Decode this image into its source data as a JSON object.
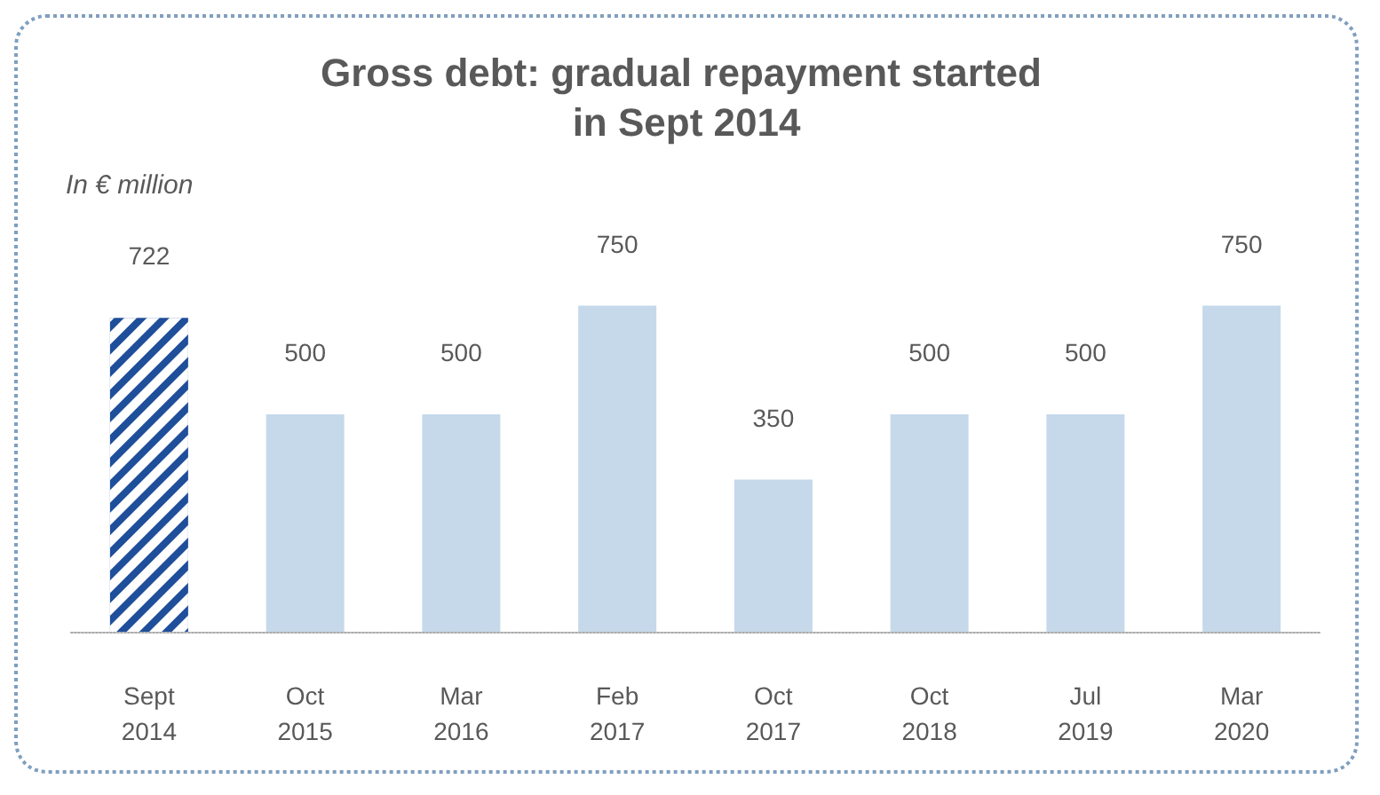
{
  "chart_data": {
    "type": "bar",
    "title": "Gross debt: gradual repayment started in Sept 2014",
    "subtitle": "In € million",
    "categories": [
      "Sept\n2014",
      "Oct\n2015",
      "Mar\n2016",
      "Feb\n2017",
      "Oct\n2017",
      "Oct\n2018",
      "Jul\n2019",
      "Mar\n2020"
    ],
    "values": [
      722,
      500,
      500,
      750,
      350,
      500,
      500,
      750
    ],
    "colors": [
      "#1f4e9a",
      "#c5d9ea",
      "#c5d9ea",
      "#c5d9ea",
      "#c5d9ea",
      "#c5d9ea",
      "#c5d9ea",
      "#c5d9ea"
    ],
    "data_labels": true
  }
}
